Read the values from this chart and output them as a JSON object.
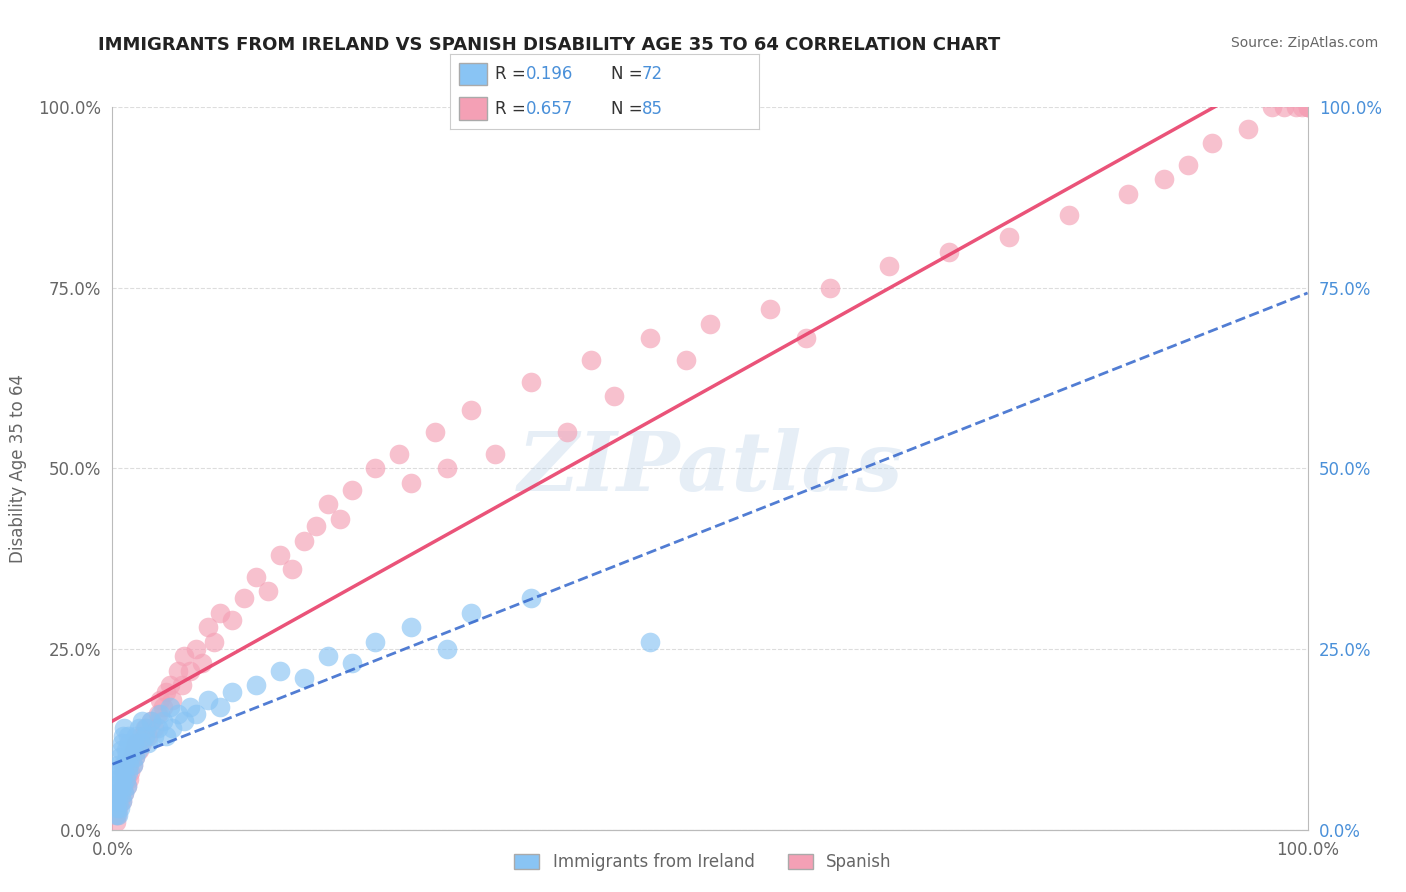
{
  "title": "IMMIGRANTS FROM IRELAND VS SPANISH DISABILITY AGE 35 TO 64 CORRELATION CHART",
  "source": "Source: ZipAtlas.com",
  "ylabel": "Disability Age 35 to 64",
  "legend_labels": [
    "Immigrants from Ireland",
    "Spanish"
  ],
  "r_ireland": 0.196,
  "n_ireland": 72,
  "r_spanish": 0.657,
  "n_spanish": 85,
  "xlim": [
    0.0,
    1.0
  ],
  "ylim": [
    0.0,
    1.0
  ],
  "ytick_values": [
    0.0,
    0.25,
    0.5,
    0.75,
    1.0
  ],
  "ytick_labels": [
    "0.0%",
    "25.0%",
    "50.0%",
    "75.0%",
    "100.0%"
  ],
  "color_ireland": "#89C4F4",
  "color_spanish": "#F4A0B5",
  "trendline_ireland": "#3366CC",
  "trendline_spanish": "#E8406A",
  "watermark_text": "ZIPatlas",
  "background_color": "#FFFFFF",
  "grid_color": "#DDDDDD",
  "title_color": "#222222",
  "label_color": "#666666",
  "ireland_x": [
    0.002,
    0.003,
    0.003,
    0.004,
    0.004,
    0.004,
    0.005,
    0.005,
    0.005,
    0.005,
    0.006,
    0.006,
    0.006,
    0.007,
    0.007,
    0.007,
    0.008,
    0.008,
    0.008,
    0.009,
    0.009,
    0.009,
    0.01,
    0.01,
    0.01,
    0.011,
    0.011,
    0.012,
    0.012,
    0.013,
    0.013,
    0.014,
    0.014,
    0.015,
    0.016,
    0.017,
    0.018,
    0.019,
    0.02,
    0.021,
    0.022,
    0.024,
    0.025,
    0.027,
    0.028,
    0.03,
    0.032,
    0.035,
    0.038,
    0.04,
    0.042,
    0.045,
    0.048,
    0.05,
    0.055,
    0.06,
    0.065,
    0.07,
    0.08,
    0.09,
    0.1,
    0.12,
    0.14,
    0.16,
    0.18,
    0.2,
    0.22,
    0.25,
    0.28,
    0.3,
    0.35,
    0.45
  ],
  "ireland_y": [
    0.04,
    0.02,
    0.06,
    0.03,
    0.05,
    0.08,
    0.02,
    0.04,
    0.07,
    0.09,
    0.03,
    0.06,
    0.1,
    0.05,
    0.08,
    0.11,
    0.04,
    0.07,
    0.12,
    0.06,
    0.09,
    0.13,
    0.05,
    0.08,
    0.14,
    0.07,
    0.11,
    0.06,
    0.1,
    0.08,
    0.13,
    0.09,
    0.12,
    0.1,
    0.11,
    0.09,
    0.12,
    0.1,
    0.13,
    0.11,
    0.14,
    0.12,
    0.15,
    0.13,
    0.14,
    0.12,
    0.15,
    0.13,
    0.14,
    0.16,
    0.15,
    0.13,
    0.17,
    0.14,
    0.16,
    0.15,
    0.17,
    0.16,
    0.18,
    0.17,
    0.19,
    0.2,
    0.22,
    0.21,
    0.24,
    0.23,
    0.26,
    0.28,
    0.25,
    0.3,
    0.32,
    0.26
  ],
  "spanish_x": [
    0.003,
    0.004,
    0.005,
    0.006,
    0.007,
    0.008,
    0.009,
    0.01,
    0.01,
    0.011,
    0.012,
    0.013,
    0.014,
    0.015,
    0.016,
    0.017,
    0.018,
    0.019,
    0.02,
    0.022,
    0.024,
    0.025,
    0.027,
    0.03,
    0.032,
    0.035,
    0.038,
    0.04,
    0.042,
    0.045,
    0.048,
    0.05,
    0.055,
    0.058,
    0.06,
    0.065,
    0.07,
    0.075,
    0.08,
    0.085,
    0.09,
    0.1,
    0.11,
    0.12,
    0.13,
    0.14,
    0.15,
    0.16,
    0.17,
    0.18,
    0.19,
    0.2,
    0.22,
    0.24,
    0.25,
    0.27,
    0.28,
    0.3,
    0.32,
    0.35,
    0.38,
    0.4,
    0.42,
    0.45,
    0.48,
    0.5,
    0.55,
    0.58,
    0.6,
    0.65,
    0.7,
    0.75,
    0.8,
    0.85,
    0.88,
    0.9,
    0.92,
    0.95,
    0.97,
    0.98,
    0.99,
    0.995,
    1.0,
    1.0,
    1.0
  ],
  "spanish_y": [
    0.01,
    0.02,
    0.03,
    0.04,
    0.05,
    0.04,
    0.06,
    0.05,
    0.08,
    0.07,
    0.06,
    0.09,
    0.07,
    0.08,
    0.1,
    0.09,
    0.11,
    0.1,
    0.12,
    0.11,
    0.13,
    0.12,
    0.14,
    0.13,
    0.15,
    0.14,
    0.16,
    0.18,
    0.17,
    0.19,
    0.2,
    0.18,
    0.22,
    0.2,
    0.24,
    0.22,
    0.25,
    0.23,
    0.28,
    0.26,
    0.3,
    0.29,
    0.32,
    0.35,
    0.33,
    0.38,
    0.36,
    0.4,
    0.42,
    0.45,
    0.43,
    0.47,
    0.5,
    0.52,
    0.48,
    0.55,
    0.5,
    0.58,
    0.52,
    0.62,
    0.55,
    0.65,
    0.6,
    0.68,
    0.65,
    0.7,
    0.72,
    0.68,
    0.75,
    0.78,
    0.8,
    0.82,
    0.85,
    0.88,
    0.9,
    0.92,
    0.95,
    0.97,
    1.0,
    1.0,
    1.0,
    1.0,
    1.0,
    1.0,
    1.0
  ]
}
